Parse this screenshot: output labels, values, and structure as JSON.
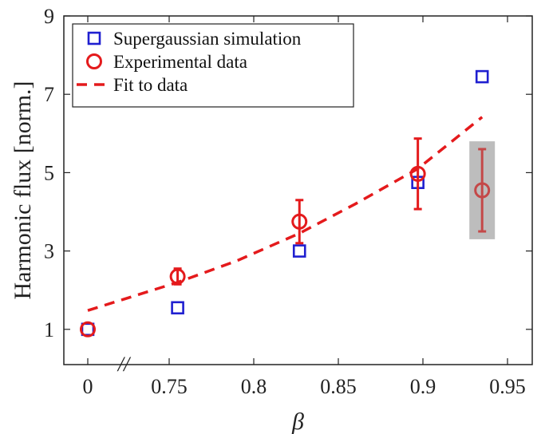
{
  "chart_data": {
    "type": "scatter",
    "xlabel": "β",
    "ylabel": "Harmonic flux [norm.]",
    "x_ticks": [
      "0",
      "0.75",
      "0.8",
      "0.85",
      "0.9",
      "0.95"
    ],
    "y_ticks": [
      "1",
      "3",
      "5",
      "7",
      "9"
    ],
    "ylim": [
      0.1,
      9
    ],
    "axis_break": {
      "between": [
        "0",
        "0.75"
      ],
      "symbol": "//"
    },
    "grid": false,
    "legend_position": "top-left",
    "series": [
      {
        "name": "Supergaussian simulation",
        "marker": "square",
        "color": "#1f1fd0",
        "points": [
          {
            "x": "0",
            "y": 1.0
          },
          {
            "x": 0.755,
            "y": 1.55
          },
          {
            "x": 0.827,
            "y": 3.0
          },
          {
            "x": 0.897,
            "y": 4.75
          },
          {
            "x": 0.935,
            "y": 7.45
          }
        ]
      },
      {
        "name": "Experimental data",
        "marker": "circle",
        "color": "#e41a1c",
        "points": [
          {
            "x": "0",
            "y": 1.0,
            "err": 0.05
          },
          {
            "x": 0.755,
            "y": 2.35,
            "err": 0.2
          },
          {
            "x": 0.827,
            "y": 3.75,
            "err": 0.55
          },
          {
            "x": 0.897,
            "y": 4.97,
            "err": 0.9
          },
          {
            "x": 0.935,
            "y": 4.55,
            "err": 1.05,
            "highlighted": true
          }
        ]
      },
      {
        "name": "Fit to data",
        "style": "dashed",
        "color": "#e41a1c",
        "points": [
          {
            "x": "0",
            "y": 1.48
          },
          {
            "x": 0.755,
            "y": 2.2
          },
          {
            "x": 0.79,
            "y": 2.75
          },
          {
            "x": 0.827,
            "y": 3.45
          },
          {
            "x": 0.86,
            "y": 4.2
          },
          {
            "x": 0.897,
            "y": 5.1
          },
          {
            "x": 0.935,
            "y": 6.42
          }
        ]
      }
    ],
    "highlight_box": {
      "x": 0.935,
      "y_range": [
        3.3,
        5.8
      ],
      "color": "#bdbdbd"
    }
  }
}
